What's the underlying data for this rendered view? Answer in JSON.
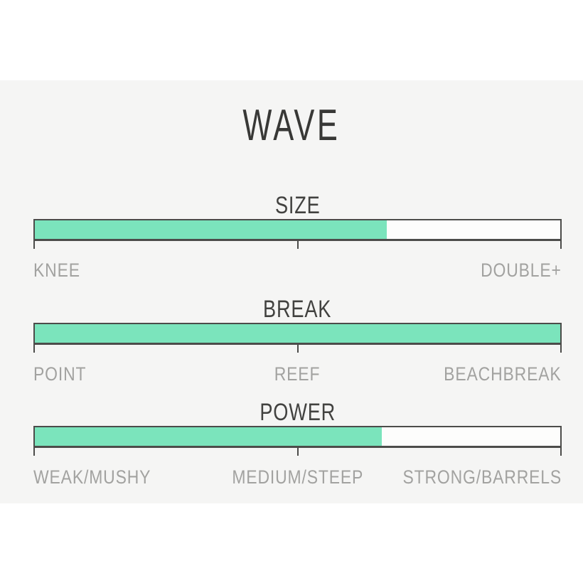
{
  "page": {
    "title": "WAVE",
    "background": "#ffffff",
    "panel_background": "#f5f5f4"
  },
  "colors": {
    "panel_background": "#f5f5f4",
    "fill_green": "#7be4bc",
    "bar_border": "#4c4c4a",
    "bar_background": "#fdfdfc",
    "title_text": "#383836",
    "section_text": "#424240",
    "range_text": "#a2a2a0"
  },
  "chart_data": [
    {
      "type": "bar",
      "title": "SIZE",
      "value_percent": 67,
      "range": [
        0,
        100
      ],
      "labels": {
        "left": "KNEE",
        "center": "",
        "right": "DOUBLE+"
      }
    },
    {
      "type": "bar",
      "title": "BREAK",
      "value_percent": 100,
      "range": [
        0,
        100
      ],
      "labels": {
        "left": "POINT",
        "center": "REEF",
        "right": "BEACHBREAK"
      }
    },
    {
      "type": "bar",
      "title": "POWER",
      "value_percent": 66,
      "range": [
        0,
        100
      ],
      "labels": {
        "left": "WEAK/MUSHY",
        "center": "MEDIUM/STEEP",
        "right": "STRONG/BARRELS"
      }
    }
  ]
}
